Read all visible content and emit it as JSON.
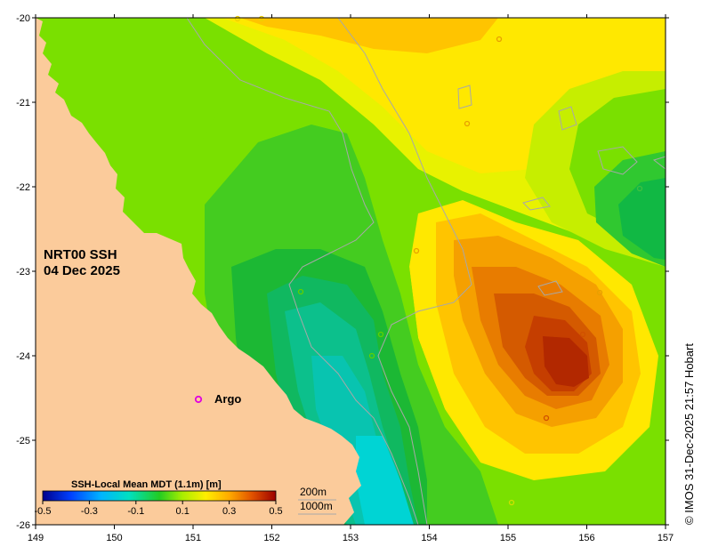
{
  "map": {
    "title_line1": "NRT00 SSH",
    "title_line2": "04 Dec 2025",
    "argo_label": "Argo",
    "credit": "© IMOS 31-Dec-2025 21:57 Hobart",
    "x_ticks": [
      "149",
      "150",
      "151",
      "152",
      "153",
      "154",
      "155",
      "156",
      "157"
    ],
    "y_ticks": [
      "-20",
      "-21",
      "-22",
      "-23",
      "-24",
      "-25",
      "-26"
    ],
    "lon_range": [
      149,
      157
    ],
    "lat_range": [
      -26,
      -20
    ],
    "colorbar": {
      "title": "SSH-Local Mean MDT (1.1m) [m]",
      "ticks": [
        "-0.5",
        "-0.3",
        "-0.1",
        "0.1",
        "0.3",
        "0.5"
      ],
      "range": [
        -0.5,
        0.5
      ]
    },
    "isobaths": [
      "200m",
      "1000m"
    ],
    "colors": {
      "land": "#fbcb9b",
      "argo_marker": "#e000e0",
      "ssh_low": "#00d4d4",
      "ssh_mid": "#22bb22",
      "ssh_high": "#b52800"
    }
  }
}
